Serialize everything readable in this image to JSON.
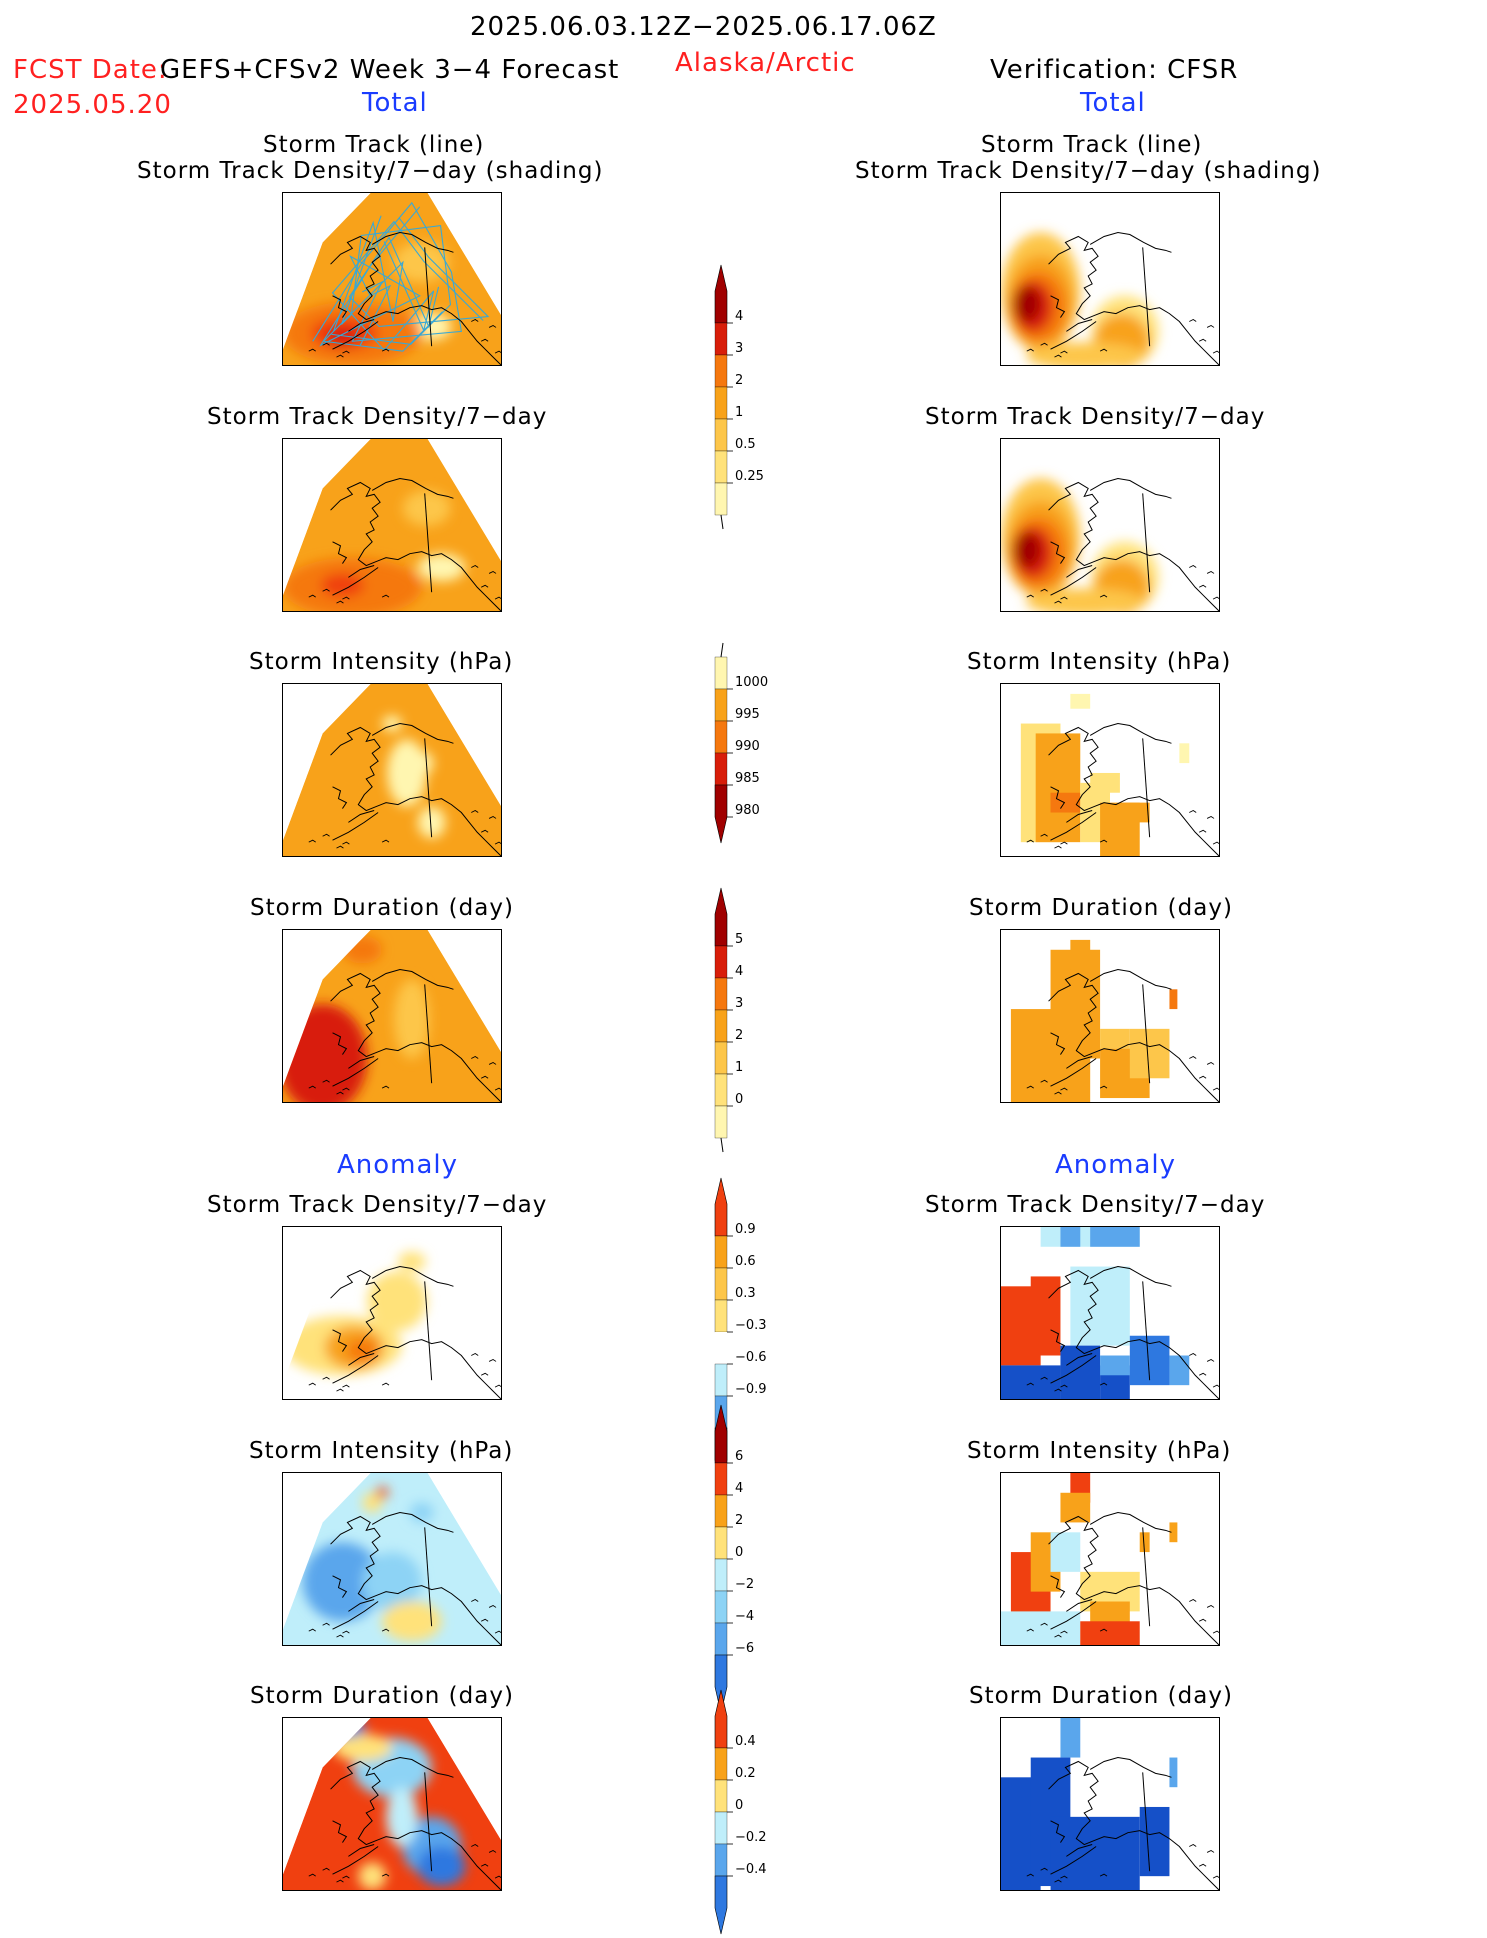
{
  "header": {
    "valid_period": "2025.06.03.12Z−2025.06.17.06Z",
    "fcst_label": "FCST Date:",
    "fcst_date": "2025.05.20",
    "model_title": "GEFS+CFSv2 Week 3−4 Forecast",
    "region": "Alaska/Arctic",
    "verification": "Verification: CFSR"
  },
  "sections": {
    "total_left": "Total",
    "total_right": "Total",
    "anomaly_left": "Anomaly",
    "anomaly_right": "Anomaly"
  },
  "panel_titles": {
    "track_line": "Storm Track (line)",
    "track_shading": "Storm Track Density/7−day (shading)",
    "density": "Storm Track Density/7−day",
    "intensity": "Storm Intensity (hPa)",
    "duration": "Storm Duration (day)"
  },
  "colors": {
    "white": "#ffffff",
    "pale_yellow": "#fff6b0",
    "light_yellow": "#ffe27a",
    "yellow_orange": "#fdc64a",
    "orange": "#f8a21a",
    "dark_orange": "#f5780f",
    "red_orange": "#f04010",
    "red": "#d81e0a",
    "dark_red": "#a00000",
    "light_cyan": "#bfeefa",
    "light_blue": "#8dd3f5",
    "mid_blue": "#5aa6ec",
    "blue": "#2e78e0",
    "dark_blue": "#1550c8",
    "track_line": "#39a8d4"
  },
  "chart_data": [
    {
      "type": "heatmap",
      "panel": "Total Storm Track (line) / Storm Track Density/7-day (shading)",
      "column": "GEFS+CFSv2 forecast",
      "colorbar_ticks": [
        0.25,
        0.5,
        1,
        2,
        3,
        4
      ],
      "dominant_range": [
        1,
        2
      ],
      "max_range": [
        3,
        4
      ]
    },
    {
      "type": "heatmap",
      "panel": "Total Storm Track (line) / Storm Track Density/7-day (shading)",
      "column": "CFSR verification",
      "colorbar_ticks": [
        0.25,
        0.5,
        1,
        2,
        3,
        4
      ],
      "dominant_range": [
        0,
        0.25
      ],
      "max_range": [
        4,
        5
      ]
    },
    {
      "type": "heatmap",
      "panel": "Total Storm Track Density/7-day",
      "column": "GEFS+CFSv2 forecast",
      "colorbar_ticks": [
        0.25,
        0.5,
        1,
        2,
        3,
        4
      ],
      "dominant_range": [
        1,
        2
      ],
      "max_range": [
        3,
        4
      ]
    },
    {
      "type": "heatmap",
      "panel": "Total Storm Track Density/7-day",
      "column": "CFSR verification",
      "colorbar_ticks": [
        0.25,
        0.5,
        1,
        2,
        3,
        4
      ],
      "dominant_range": [
        0,
        0.25
      ],
      "max_range": [
        4,
        5
      ]
    },
    {
      "type": "heatmap",
      "panel": "Total Storm Intensity (hPa)",
      "column": "GEFS+CFSv2 forecast",
      "colorbar_ticks": [
        980,
        985,
        990,
        995,
        1000
      ],
      "dominant_range": [
        990,
        995
      ]
    },
    {
      "type": "heatmap",
      "panel": "Total Storm Intensity (hPa)",
      "column": "CFSR verification",
      "colorbar_ticks": [
        980,
        985,
        990,
        995,
        1000
      ],
      "dominant_range": [
        990,
        995
      ]
    },
    {
      "type": "heatmap",
      "panel": "Total Storm Duration (day)",
      "column": "GEFS+CFSv2 forecast",
      "colorbar_ticks": [
        0,
        1,
        2,
        3,
        4,
        5
      ],
      "dominant_range": [
        2,
        3
      ],
      "max_range": [
        4,
        5
      ]
    },
    {
      "type": "heatmap",
      "panel": "Total Storm Duration (day)",
      "column": "CFSR verification",
      "colorbar_ticks": [
        0,
        1,
        2,
        3,
        4,
        5
      ],
      "dominant_range": [
        1,
        2
      ],
      "max_range": [
        3,
        4
      ]
    },
    {
      "type": "heatmap",
      "panel": "Anomaly Storm Track Density/7-day",
      "column": "GEFS+CFSv2 forecast",
      "colorbar_ticks": [
        -0.9,
        -0.6,
        -0.3,
        0.3,
        0.6,
        0.9
      ],
      "dominant_range": [
        0.3,
        0.6
      ],
      "max_range": [
        0.9,
        1.2
      ]
    },
    {
      "type": "heatmap",
      "panel": "Anomaly Storm Track Density/7-day",
      "column": "CFSR verification",
      "colorbar_ticks": [
        -0.9,
        -0.6,
        -0.3,
        0.3,
        0.6,
        0.9
      ],
      "dominant_range": [
        -0.3,
        0.3
      ],
      "min_range": [
        -1.2,
        -0.9
      ],
      "max_range": [
        0.9,
        1.2
      ]
    },
    {
      "type": "heatmap",
      "panel": "Anomaly Storm Intensity (hPa)",
      "column": "GEFS+CFSv2 forecast",
      "colorbar_ticks": [
        -6,
        -4,
        -2,
        0,
        2,
        4,
        6
      ],
      "dominant_range": [
        -2,
        0
      ],
      "min_range": [
        -6,
        -4
      ]
    },
    {
      "type": "heatmap",
      "panel": "Anomaly Storm Intensity (hPa)",
      "column": "CFSR verification",
      "colorbar_ticks": [
        -6,
        -4,
        -2,
        0,
        2,
        4,
        6
      ],
      "dominant_range": [
        0,
        2
      ],
      "max_range": [
        4,
        6
      ]
    },
    {
      "type": "heatmap",
      "panel": "Anomaly Storm Duration (day)",
      "column": "GEFS+CFSv2 forecast",
      "colorbar_ticks": [
        -0.4,
        -0.2,
        0,
        0.2,
        0.4
      ],
      "dominant_range": [
        0.4,
        0.6
      ],
      "min_range": [
        -0.6,
        -0.4
      ]
    },
    {
      "type": "heatmap",
      "panel": "Anomaly Storm Duration (day)",
      "column": "CFSR verification",
      "colorbar_ticks": [
        -0.4,
        -0.2,
        0,
        0.2,
        0.4
      ],
      "dominant_range": [
        -0.6,
        -0.4
      ]
    }
  ],
  "colorbars": [
    {
      "ticks": [
        "4",
        "3",
        "2",
        "1",
        "0.5",
        "0.25"
      ],
      "colors": [
        "#a00000",
        "#d81e0a",
        "#f5780f",
        "#f8a21a",
        "#fdc64a",
        "#ffe27a",
        "#fff6b0"
      ],
      "top_arrow": true,
      "bottom_arrow": false
    },
    {
      "ticks": [
        "1000",
        "995",
        "990",
        "985",
        "980"
      ],
      "colors": [
        "#fff6b0",
        "#f8a21a",
        "#f5780f",
        "#d81e0a",
        "#a00000"
      ],
      "top_arrow": false,
      "bottom_arrow": true
    },
    {
      "ticks": [
        "5",
        "4",
        "3",
        "2",
        "1",
        "0"
      ],
      "colors": [
        "#a00000",
        "#d81e0a",
        "#f5780f",
        "#f8a21a",
        "#fdc64a",
        "#ffe27a",
        "#fff6b0"
      ],
      "top_arrow": true,
      "bottom_arrow": false
    },
    {
      "ticks": [
        "0.9",
        "0.6",
        "0.3",
        "−0.3",
        "−0.6",
        "−0.9"
      ],
      "colors": [
        "#f04010",
        "#f8a21a",
        "#fdc64a",
        "#ffe27a",
        "#ffffff",
        "#bfeefa",
        "#5aa6ec",
        "#2e78e0"
      ],
      "top_arrow": true,
      "bottom_arrow": true
    },
    {
      "ticks": [
        "6",
        "4",
        "2",
        "0",
        "−2",
        "−4",
        "−6"
      ],
      "colors": [
        "#a00000",
        "#f04010",
        "#f8a21a",
        "#ffe27a",
        "#bfeefa",
        "#8dd3f5",
        "#5aa6ec",
        "#2e78e0"
      ],
      "top_arrow": true,
      "bottom_arrow": true
    },
    {
      "ticks": [
        "0.4",
        "0.2",
        "0",
        "−0.2",
        "−0.4"
      ],
      "colors": [
        "#f04010",
        "#f8a21a",
        "#ffe27a",
        "#bfeefa",
        "#5aa6ec",
        "#2e78e0"
      ],
      "top_arrow": true,
      "bottom_arrow": true
    }
  ]
}
